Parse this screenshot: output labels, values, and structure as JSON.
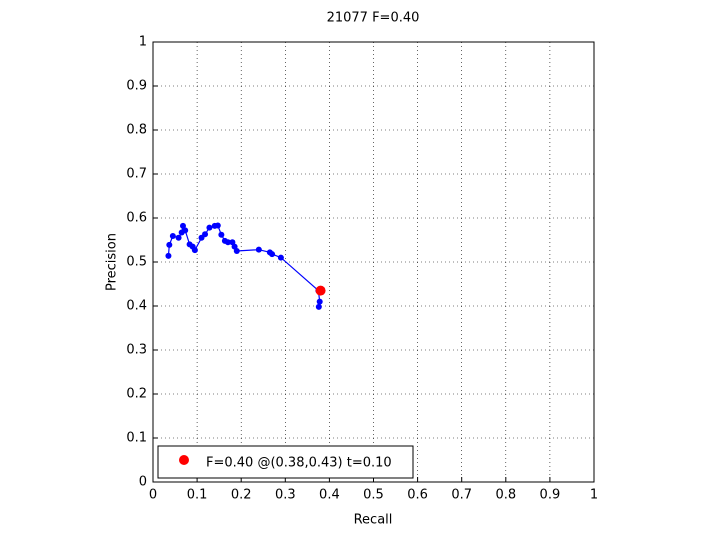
{
  "chart_data": {
    "type": "line",
    "title": "21077 F=0.40",
    "xlabel": "Recall",
    "ylabel": "Precision",
    "xlim": [
      0,
      1
    ],
    "ylim": [
      0,
      1
    ],
    "xticks": [
      0,
      0.1,
      0.2,
      0.3,
      0.4,
      0.5,
      0.6,
      0.7,
      0.8,
      0.9,
      1
    ],
    "yticks": [
      0,
      0.1,
      0.2,
      0.3,
      0.4,
      0.5,
      0.6,
      0.7,
      0.8,
      0.9,
      1
    ],
    "grid": true,
    "legend": "lower left",
    "series": [
      {
        "color": "#0000ff",
        "marker": "dot",
        "x": [
          0.035,
          0.037,
          0.045,
          0.058,
          0.065,
          0.068,
          0.073,
          0.083,
          0.09,
          0.095,
          0.11,
          0.118,
          0.128,
          0.14,
          0.147,
          0.155,
          0.163,
          0.17,
          0.18,
          0.185,
          0.19,
          0.24,
          0.265,
          0.27,
          0.29,
          0.375,
          0.378,
          0.376
        ],
        "values": [
          0.514,
          0.539,
          0.559,
          0.555,
          0.567,
          0.582,
          0.572,
          0.54,
          0.535,
          0.527,
          0.555,
          0.563,
          0.578,
          0.582,
          0.583,
          0.562,
          0.548,
          0.545,
          0.545,
          0.535,
          0.525,
          0.528,
          0.522,
          0.518,
          0.51,
          0.435,
          0.41,
          0.398
        ]
      },
      {
        "name": "F=0.40 @(0.38,0.43) t=0.10",
        "color": "#ff0000",
        "marker": "big-dot",
        "x": [
          0.38
        ],
        "values": [
          0.435
        ]
      }
    ]
  }
}
